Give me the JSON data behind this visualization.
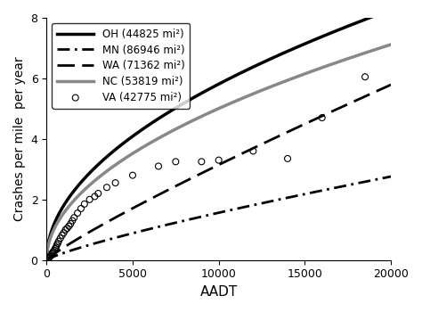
{
  "xlabel": "AADT",
  "ylabel": "Crashes per mile  per year",
  "xlim": [
    0,
    20000
  ],
  "ylim": [
    0,
    8
  ],
  "xticks": [
    0,
    5000,
    10000,
    15000,
    20000
  ],
  "yticks": [
    0,
    2,
    4,
    6,
    8
  ],
  "curves": {
    "OH": {
      "a": 0.054,
      "b": 0.508,
      "color": "#000000",
      "lw": 2.5,
      "ls": "solid",
      "label": "OH (44825 mi²)"
    },
    "MN": {
      "a": 0.00082,
      "b": 0.82,
      "color": "#000000",
      "lw": 2.0,
      "ls": "dashdot",
      "label": "MN (86946 mi²)"
    },
    "WA": {
      "a": 0.00095,
      "b": 0.88,
      "color": "#000000",
      "lw": 2.0,
      "ls": "dashed",
      "label": "WA (71362 mi²)"
    },
    "NC": {
      "a": 0.0465,
      "b": 0.508,
      "color": "#888888",
      "lw": 2.5,
      "ls": "solid",
      "label": "NC (53819 mi²)"
    }
  },
  "va_x": [
    100,
    150,
    200,
    250,
    300,
    350,
    400,
    450,
    500,
    550,
    600,
    650,
    700,
    800,
    900,
    1000,
    1100,
    1200,
    1300,
    1400,
    1500,
    1600,
    1800,
    2000,
    2200,
    2500,
    2800,
    3000,
    3500,
    4000,
    5000,
    6500,
    7500,
    9000,
    10000,
    12000,
    14000,
    16000,
    18500
  ],
  "va_y": [
    0.05,
    0.08,
    0.12,
    0.15,
    0.2,
    0.25,
    0.28,
    0.32,
    0.38,
    0.42,
    0.5,
    0.55,
    0.62,
    0.72,
    0.82,
    0.9,
    1.0,
    1.05,
    1.12,
    1.2,
    1.3,
    1.4,
    1.55,
    1.7,
    1.85,
    2.0,
    2.1,
    2.2,
    2.4,
    2.55,
    2.8,
    3.1,
    3.25,
    3.25,
    3.3,
    3.6,
    3.35,
    4.7,
    6.05
  ],
  "va_label": "VA (42775 mi²)",
  "background_color": "#ffffff"
}
